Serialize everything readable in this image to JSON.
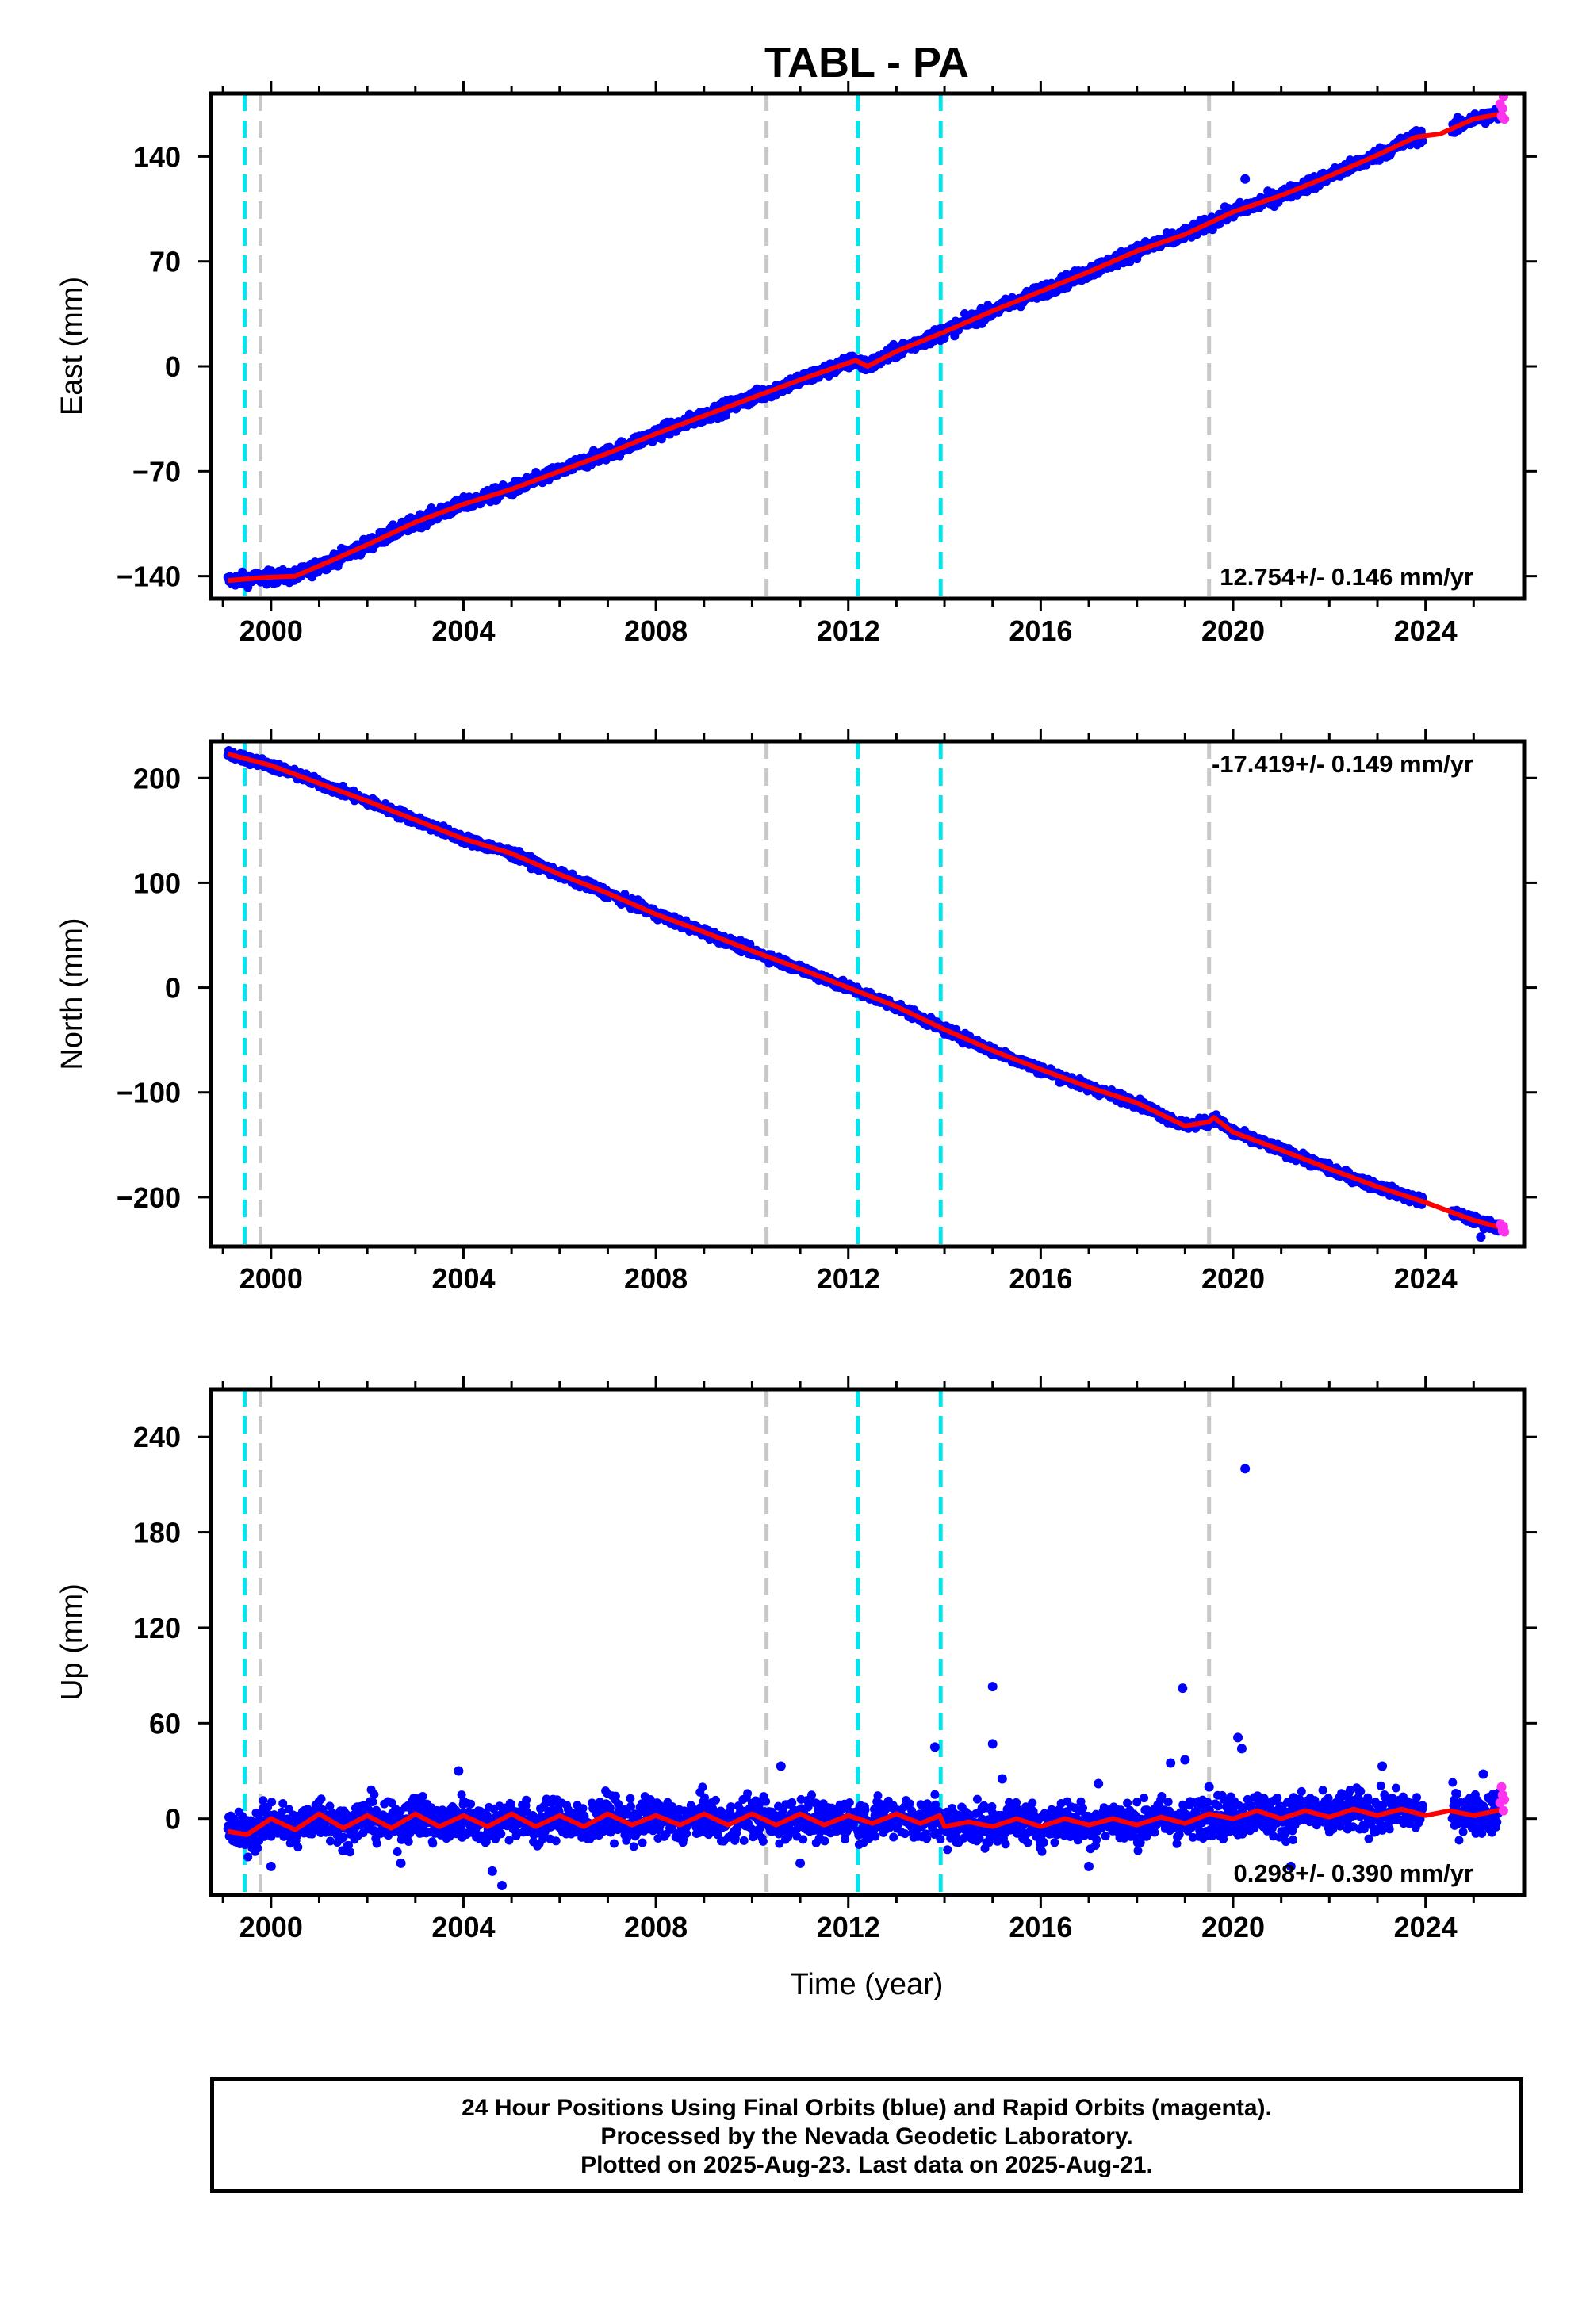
{
  "chart_data": {
    "type": "scatter",
    "title": "TABL - PA",
    "xlabel": "Time (year)",
    "xlim": [
      1998.75,
      2026.05
    ],
    "x_ticks": [
      2000,
      2004,
      2008,
      2012,
      2016,
      2020,
      2024
    ],
    "x_tick_labels": [
      "2000",
      "2004",
      "2008",
      "2012",
      "2016",
      "2020",
      "2024"
    ],
    "data_start": 1999.1,
    "data_end": 2025.64,
    "colors": {
      "final_orbits": "#0000ff",
      "rapid_orbits": "#ff33ee",
      "model": "#ff0000",
      "equipment_change": "#00e5ee",
      "other_event": "#c8c8c8"
    },
    "event_lines": [
      {
        "year": 1999.45,
        "kind": "equipment_change"
      },
      {
        "year": 1999.78,
        "kind": "other_event"
      },
      {
        "year": 2010.3,
        "kind": "other_event"
      },
      {
        "year": 2012.2,
        "kind": "equipment_change"
      },
      {
        "year": 2013.92,
        "kind": "equipment_change"
      },
      {
        "year": 2019.5,
        "kind": "other_event"
      }
    ],
    "panels": [
      {
        "name": "east",
        "ylabel": "East (mm)",
        "ylim": [
          -155,
          182
        ],
        "y_ticks": [
          -140,
          -70,
          0,
          70,
          140
        ],
        "y_tick_labels": [
          "−140",
          "−70",
          "0",
          "70",
          "140"
        ],
        "rate_label": "12.754+/- 0.146 mm/yr",
        "rate_position": "bottom-right",
        "rate": 12.754,
        "model_points": [
          [
            1999.1,
            -143
          ],
          [
            1999.8,
            -141
          ],
          [
            2000.5,
            -140
          ],
          [
            2001.3,
            -129
          ],
          [
            2002.0,
            -119
          ],
          [
            2003.0,
            -104
          ],
          [
            2004.0,
            -92
          ],
          [
            2005.0,
            -82
          ],
          [
            2006.0,
            -70
          ],
          [
            2007.0,
            -58
          ],
          [
            2008.0,
            -45
          ],
          [
            2009.0,
            -33
          ],
          [
            2010.0,
            -21
          ],
          [
            2011.0,
            -9
          ],
          [
            2012.15,
            4
          ],
          [
            2012.4,
            0
          ],
          [
            2013.0,
            10
          ],
          [
            2014.0,
            23
          ],
          [
            2015.0,
            37
          ],
          [
            2016.0,
            50
          ],
          [
            2017.0,
            63
          ],
          [
            2018.0,
            77
          ],
          [
            2019.0,
            88
          ],
          [
            2020.0,
            103
          ],
          [
            2021.0,
            114
          ],
          [
            2022.0,
            127
          ],
          [
            2023.0,
            141
          ],
          [
            2023.8,
            153
          ],
          [
            2024.3,
            155
          ],
          [
            2025.0,
            165
          ],
          [
            2025.64,
            169
          ]
        ],
        "outliers": [
          [
            2020.25,
            125
          ]
        ],
        "rapid_points": [
          [
            2025.55,
            175
          ],
          [
            2025.58,
            167
          ],
          [
            2025.6,
            172
          ],
          [
            2025.62,
            180
          ],
          [
            2025.64,
            165
          ]
        ]
      },
      {
        "name": "north",
        "ylabel": "North (mm)",
        "ylim": [
          -247,
          235
        ],
        "y_ticks": [
          -200,
          -100,
          0,
          100,
          200
        ],
        "y_tick_labels": [
          "−200",
          "−100",
          "0",
          "100",
          "200"
        ],
        "rate_label": "-17.419+/- 0.149 mm/yr",
        "rate_position": "top-right",
        "rate": -17.419,
        "model_points": [
          [
            1999.1,
            223
          ],
          [
            2000.0,
            212
          ],
          [
            2001.0,
            195
          ],
          [
            2002.0,
            178
          ],
          [
            2003.0,
            160
          ],
          [
            2004.0,
            142
          ],
          [
            2005.0,
            128
          ],
          [
            2006.0,
            108
          ],
          [
            2007.0,
            90
          ],
          [
            2008.0,
            70
          ],
          [
            2009.0,
            53
          ],
          [
            2010.0,
            35
          ],
          [
            2011.0,
            18
          ],
          [
            2012.0,
            0
          ],
          [
            2013.0,
            -18
          ],
          [
            2014.0,
            -40
          ],
          [
            2015.0,
            -60
          ],
          [
            2016.0,
            -78
          ],
          [
            2017.0,
            -95
          ],
          [
            2018.0,
            -110
          ],
          [
            2019.0,
            -132
          ],
          [
            2019.5,
            -128
          ],
          [
            2019.6,
            -124
          ],
          [
            2020.0,
            -138
          ],
          [
            2021.0,
            -155
          ],
          [
            2022.0,
            -173
          ],
          [
            2023.0,
            -190
          ],
          [
            2024.0,
            -205
          ],
          [
            2025.0,
            -222
          ],
          [
            2025.64,
            -230
          ]
        ],
        "outliers": [
          [
            2025.15,
            -238
          ]
        ],
        "rapid_points": [
          [
            2025.56,
            -226
          ],
          [
            2025.6,
            -232
          ],
          [
            2025.62,
            -228
          ],
          [
            2025.64,
            -233
          ]
        ]
      },
      {
        "name": "up",
        "ylabel": "Up (mm)",
        "ylim": [
          -48,
          270
        ],
        "y_ticks": [
          0,
          60,
          120,
          180,
          240
        ],
        "y_tick_labels": [
          "0",
          "60",
          "120",
          "180",
          "240"
        ],
        "rate_label": "0.298+/- 0.390 mm/yr",
        "rate_position": "bottom-right",
        "rate": 0.298,
        "model_points": [
          [
            1999.1,
            -8
          ],
          [
            1999.5,
            -10
          ],
          [
            2000.0,
            0
          ],
          [
            2000.5,
            -7
          ],
          [
            2001.0,
            3
          ],
          [
            2001.5,
            -6
          ],
          [
            2002.0,
            2
          ],
          [
            2002.5,
            -6
          ],
          [
            2003.0,
            3
          ],
          [
            2003.5,
            -5
          ],
          [
            2004.0,
            2
          ],
          [
            2004.5,
            -5
          ],
          [
            2005.0,
            3
          ],
          [
            2005.5,
            -5
          ],
          [
            2006.0,
            2
          ],
          [
            2006.5,
            -5
          ],
          [
            2007.0,
            3
          ],
          [
            2007.5,
            -4
          ],
          [
            2008.0,
            2
          ],
          [
            2008.5,
            -4
          ],
          [
            2009.0,
            3
          ],
          [
            2009.5,
            -4
          ],
          [
            2010.0,
            3
          ],
          [
            2010.5,
            -4
          ],
          [
            2011.0,
            3
          ],
          [
            2011.5,
            -4
          ],
          [
            2012.0,
            2
          ],
          [
            2012.5,
            -3
          ],
          [
            2013.0,
            3
          ],
          [
            2013.5,
            -3
          ],
          [
            2013.9,
            2
          ],
          [
            2014.0,
            -5
          ],
          [
            2014.5,
            -2
          ],
          [
            2015.0,
            -5
          ],
          [
            2015.5,
            0
          ],
          [
            2016.0,
            -5
          ],
          [
            2016.5,
            0
          ],
          [
            2017.0,
            -4
          ],
          [
            2017.5,
            0
          ],
          [
            2018.0,
            -4
          ],
          [
            2018.5,
            1
          ],
          [
            2019.0,
            -3
          ],
          [
            2019.5,
            3
          ],
          [
            2020.0,
            0
          ],
          [
            2020.5,
            5
          ],
          [
            2021.0,
            0
          ],
          [
            2021.5,
            5
          ],
          [
            2022.0,
            1
          ],
          [
            2022.5,
            6
          ],
          [
            2023.0,
            2
          ],
          [
            2023.5,
            6
          ],
          [
            2024.0,
            2
          ],
          [
            2024.5,
            5
          ],
          [
            2025.0,
            2
          ],
          [
            2025.64,
            6
          ]
        ],
        "outliers": [
          [
            2000.0,
            -30
          ],
          [
            2002.7,
            -28
          ],
          [
            2003.9,
            30
          ],
          [
            2004.6,
            -33
          ],
          [
            2004.8,
            -42
          ],
          [
            2010.6,
            33
          ],
          [
            2011.0,
            -28
          ],
          [
            2013.8,
            45
          ],
          [
            2015.0,
            83
          ],
          [
            2015.0,
            47
          ],
          [
            2015.2,
            25
          ],
          [
            2017.0,
            -30
          ],
          [
            2017.2,
            22
          ],
          [
            2018.7,
            35
          ],
          [
            2018.95,
            82
          ],
          [
            2019.0,
            37
          ],
          [
            2019.5,
            20
          ],
          [
            2020.1,
            51
          ],
          [
            2020.18,
            44
          ],
          [
            2020.25,
            273
          ],
          [
            2020.25,
            220
          ],
          [
            2021.2,
            -30
          ],
          [
            2023.1,
            33
          ],
          [
            2025.2,
            28
          ]
        ],
        "rapid_points": [
          [
            2025.55,
            10
          ],
          [
            2025.58,
            20
          ],
          [
            2025.6,
            15
          ],
          [
            2025.62,
            5
          ],
          [
            2025.64,
            12
          ]
        ]
      }
    ]
  },
  "footer": {
    "line1": "24 Hour Positions Using Final Orbits (blue) and Rapid Orbits (magenta).",
    "line2": "Processed by the Nevada Geodetic Laboratory.",
    "line3": "Plotted on 2025-Aug-23. Last data on 2025-Aug-21."
  }
}
